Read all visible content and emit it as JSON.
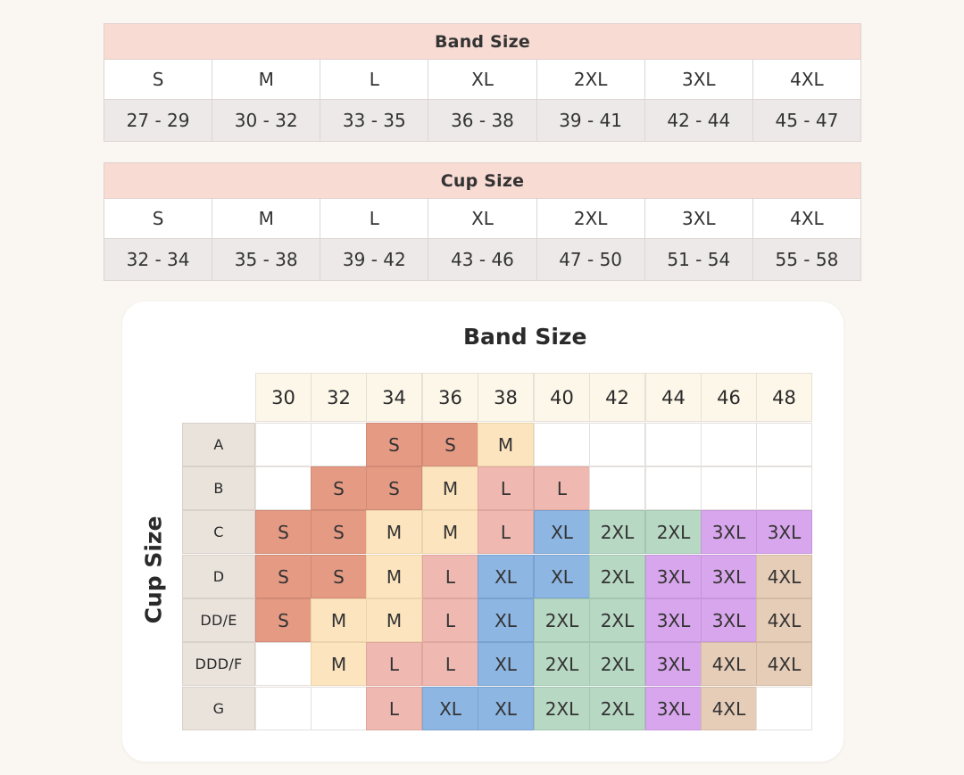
{
  "band_table": {
    "title": "Band Size",
    "sizes": [
      "S",
      "M",
      "L",
      "XL",
      "2XL",
      "3XL",
      "4XL"
    ],
    "ranges": [
      "27 - 29",
      "30 - 32",
      "33 - 35",
      "36 - 38",
      "39 - 41",
      "42 - 44",
      "45 - 47"
    ]
  },
  "cup_table": {
    "title": "Cup Size",
    "sizes": [
      "S",
      "M",
      "L",
      "XL",
      "2XL",
      "3XL",
      "4XL"
    ],
    "ranges": [
      "32 - 34",
      "35 - 38",
      "39 - 42",
      "43 - 46",
      "47 - 50",
      "51 - 54",
      "55 - 58"
    ]
  },
  "matrix": {
    "title": "Band Size",
    "row_axis_label": "Cup Size",
    "bands": [
      "30",
      "32",
      "34",
      "36",
      "38",
      "40",
      "42",
      "44",
      "46",
      "48"
    ],
    "cups": [
      "A",
      "B",
      "C",
      "D",
      "DD/E",
      "DDD/F",
      "G"
    ],
    "cells": [
      [
        "",
        "",
        "S",
        "S",
        "M",
        "",
        "",
        "",
        "",
        ""
      ],
      [
        "",
        "S",
        "S",
        "M",
        "L",
        "L",
        "",
        "",
        "",
        ""
      ],
      [
        "S",
        "S",
        "M",
        "M",
        "L",
        "XL",
        "2XL",
        "2XL",
        "3XL",
        "3XL"
      ],
      [
        "S",
        "S",
        "M",
        "L",
        "XL",
        "XL",
        "2XL",
        "3XL",
        "3XL",
        "4XL"
      ],
      [
        "S",
        "M",
        "M",
        "L",
        "XL",
        "2XL",
        "2XL",
        "3XL",
        "3XL",
        "4XL"
      ],
      [
        "",
        "M",
        "L",
        "L",
        "XL",
        "2XL",
        "2XL",
        "3XL",
        "4XL",
        "4XL"
      ],
      [
        "",
        "",
        "L",
        "XL",
        "XL",
        "2XL",
        "2XL",
        "3XL",
        "4XL",
        ""
      ]
    ],
    "colors": {
      "S": "#e59a84",
      "M": "#fbe4be",
      "L": "#efb9b1",
      "XL": "#8db6e3",
      "2XL": "#b7d8c3",
      "3XL": "#d8a6ec",
      "4XL": "#e6cdb8"
    }
  }
}
